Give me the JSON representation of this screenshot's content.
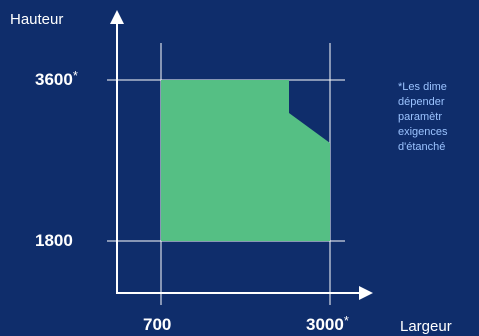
{
  "labels": {
    "y_axis_title": "Hauteur",
    "x_axis_title": "Largeur",
    "y_tick_top": "3600",
    "y_tick_bottom": "1800",
    "x_tick_left": "700",
    "x_tick_right": "3000",
    "asterisk": "*",
    "note_lines": [
      "*Les dime",
      "dépender",
      "paramètr",
      "exigences",
      "d'étanché"
    ]
  },
  "colors": {
    "background": "#0f2d6b",
    "area_fill": "#55bf84",
    "note_text": "#9bc3ff"
  }
}
